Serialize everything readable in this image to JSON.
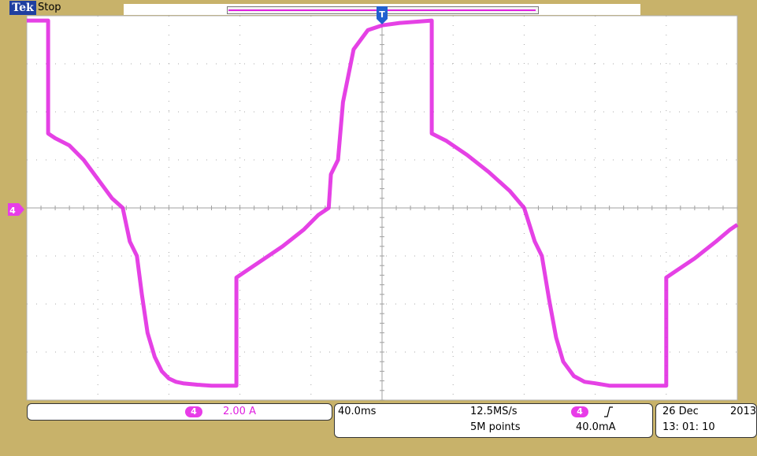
{
  "header": {
    "brand": "Tek",
    "run_state": "Stop"
  },
  "colors": {
    "background": "#C8B26A",
    "screen": "#FFFFFF",
    "trace": "#E020E0",
    "trigger_marker": "#2060D0"
  },
  "channel_marker": {
    "label": "4"
  },
  "trigger_marker": {
    "label": "T"
  },
  "status": {
    "channel": {
      "label": "4",
      "scale": "2.00 A"
    },
    "timebase": "40.0ms",
    "sample_rate": "12.5MS/s",
    "record_length": "5M points",
    "trigger": {
      "channel": "4",
      "slope_icon": "rising-edge-icon",
      "level": "40.0mA"
    },
    "date": "26 Dec",
    "year": "2013",
    "time": "13: 01: 10"
  },
  "chart_data": {
    "type": "line",
    "grid": true,
    "x_divisions": 10,
    "y_divisions": 8,
    "xlabel": "",
    "ylabel": "",
    "xlim": [
      -5,
      5
    ],
    "ylim": [
      -4,
      4
    ],
    "series": [
      {
        "x": [
          -5.0,
          -4.7,
          -4.7,
          -4.6,
          -4.4,
          -4.2,
          -4.0,
          -3.8,
          -3.65,
          -3.55,
          -3.45,
          -3.38,
          -3.3,
          -3.2,
          -3.1,
          -3.0,
          -2.9,
          -2.8,
          -2.6,
          -2.4,
          -2.2,
          -2.05,
          -2.05,
          -1.95,
          -1.7,
          -1.4,
          -1.1,
          -0.9,
          -0.75,
          -0.72,
          -0.62,
          -0.55,
          -0.4,
          -0.2,
          0.0,
          0.25,
          0.7,
          0.7,
          0.9,
          1.2,
          1.5,
          1.8,
          2.0,
          2.15,
          2.25,
          2.35,
          2.45,
          2.55,
          2.7,
          2.85,
          3.0,
          3.2,
          3.4,
          3.6,
          3.85,
          4.0,
          4.0,
          4.1,
          4.4,
          4.7,
          4.9,
          5.0
        ],
        "y": [
          3.9,
          3.9,
          1.55,
          1.45,
          1.3,
          1.0,
          0.6,
          0.2,
          0.0,
          -0.7,
          -1.0,
          -1.8,
          -2.6,
          -3.1,
          -3.4,
          -3.55,
          -3.62,
          -3.65,
          -3.68,
          -3.7,
          -3.7,
          -3.7,
          -1.45,
          -1.35,
          -1.1,
          -0.8,
          -0.45,
          -0.15,
          0.0,
          0.7,
          1.0,
          2.2,
          3.3,
          3.7,
          3.8,
          3.85,
          3.9,
          1.55,
          1.4,
          1.1,
          0.75,
          0.35,
          0.0,
          -0.7,
          -1.0,
          -1.9,
          -2.7,
          -3.2,
          -3.5,
          -3.62,
          -3.65,
          -3.7,
          -3.7,
          -3.7,
          -3.7,
          -3.7,
          -1.45,
          -1.35,
          -1.05,
          -0.7,
          -0.45,
          -0.35
        ]
      }
    ]
  }
}
